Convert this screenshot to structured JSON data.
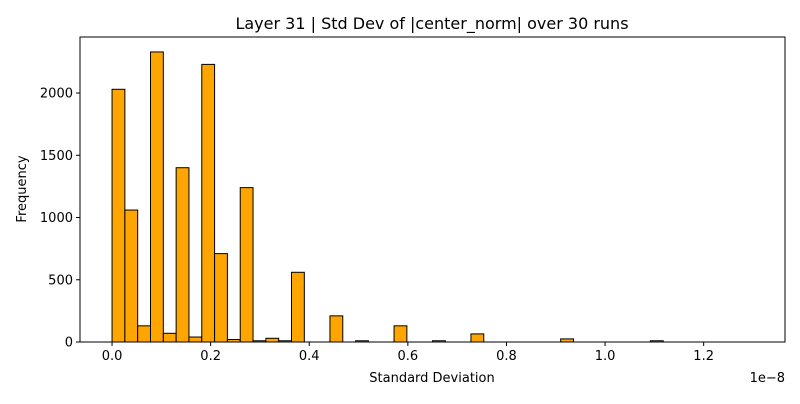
{
  "chart_data": {
    "type": "bar",
    "title": "Layer 31 | Std Dev of |center_norm| over 30 runs",
    "xlabel": "Standard Deviation",
    "ylabel": "Frequency",
    "x_offset_label": "1e−8",
    "xlim": [
      -0.065,
      1.365
    ],
    "ylim": [
      0,
      2450
    ],
    "x_ticks": [
      0.0,
      0.2,
      0.4,
      0.6,
      0.8,
      1.0,
      1.2
    ],
    "x_tick_labels": [
      "0.0",
      "0.2",
      "0.4",
      "0.6",
      "0.8",
      "1.0",
      "1.2"
    ],
    "y_ticks": [
      0,
      500,
      1000,
      1500,
      2000
    ],
    "y_tick_labels": [
      "0",
      "500",
      "1000",
      "1500",
      "2000"
    ],
    "bin_start": 0.0,
    "bin_width": 0.026,
    "values": [
      2030,
      1060,
      130,
      2330,
      70,
      1400,
      40,
      2230,
      710,
      20,
      1240,
      10,
      30,
      10,
      560,
      0,
      0,
      210,
      0,
      10,
      0,
      0,
      130,
      0,
      0,
      10,
      0,
      0,
      65,
      0,
      0,
      0,
      0,
      0,
      0,
      25,
      0,
      0,
      0,
      0,
      0,
      0,
      10,
      0,
      0,
      0,
      0,
      0,
      0,
      0
    ],
    "bar_color": "#ffa500",
    "edge_color": "#000000",
    "grid": false
  }
}
